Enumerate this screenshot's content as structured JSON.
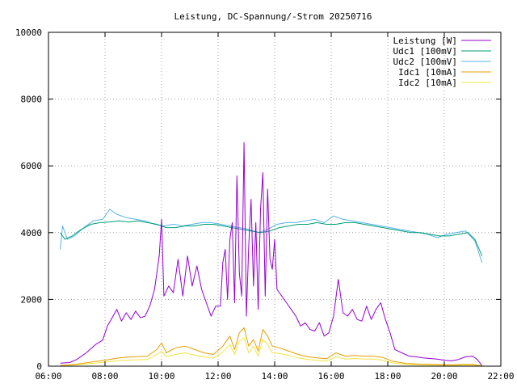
{
  "chart_data": {
    "type": "line",
    "title": "Leistung, DC-Spannung/-Strom 20250716",
    "xlabel": "",
    "ylabel": "",
    "xlim": [
      "06:00",
      "22:00"
    ],
    "ylim": [
      0,
      10000
    ],
    "x_ticks": [
      "06:00",
      "08:00",
      "10:00",
      "12:00",
      "14:00",
      "16:00",
      "18:00",
      "20:00",
      "22:00"
    ],
    "y_ticks": [
      "0",
      "2000",
      "4000",
      "6000",
      "8000",
      "10000"
    ],
    "grid": true,
    "legend_position": "top-right",
    "series": [
      {
        "name": "Leistung [W]",
        "color": "#9400d3",
        "points": [
          [
            "06:25",
            90
          ],
          [
            "06:45",
            110
          ],
          [
            "07:00",
            200
          ],
          [
            "07:20",
            400
          ],
          [
            "07:40",
            650
          ],
          [
            "07:55",
            780
          ],
          [
            "08:05",
            1200
          ],
          [
            "08:15",
            1450
          ],
          [
            "08:25",
            1700
          ],
          [
            "08:35",
            1350
          ],
          [
            "08:45",
            1600
          ],
          [
            "08:55",
            1400
          ],
          [
            "09:05",
            1650
          ],
          [
            "09:15",
            1450
          ],
          [
            "09:25",
            1500
          ],
          [
            "09:35",
            1800
          ],
          [
            "09:45",
            2300
          ],
          [
            "09:50",
            2800
          ],
          [
            "09:55",
            3300
          ],
          [
            "10:00",
            4400
          ],
          [
            "10:05",
            2100
          ],
          [
            "10:15",
            2400
          ],
          [
            "10:25",
            2200
          ],
          [
            "10:35",
            3200
          ],
          [
            "10:45",
            2100
          ],
          [
            "10:55",
            3300
          ],
          [
            "11:05",
            2400
          ],
          [
            "11:15",
            3000
          ],
          [
            "11:25",
            2300
          ],
          [
            "11:35",
            1900
          ],
          [
            "11:45",
            1500
          ],
          [
            "11:55",
            1800
          ],
          [
            "12:05",
            1800
          ],
          [
            "12:10",
            3100
          ],
          [
            "12:15",
            3500
          ],
          [
            "12:20",
            2000
          ],
          [
            "12:25",
            3800
          ],
          [
            "12:30",
            4300
          ],
          [
            "12:35",
            1900
          ],
          [
            "12:40",
            5700
          ],
          [
            "12:45",
            2800
          ],
          [
            "12:50",
            2100
          ],
          [
            "12:55",
            6700
          ],
          [
            "13:00",
            1500
          ],
          [
            "13:05",
            3600
          ],
          [
            "13:10",
            5000
          ],
          [
            "13:15",
            2400
          ],
          [
            "13:20",
            4300
          ],
          [
            "13:25",
            1700
          ],
          [
            "13:30",
            4700
          ],
          [
            "13:35",
            5800
          ],
          [
            "13:40",
            2100
          ],
          [
            "13:45",
            5300
          ],
          [
            "13:50",
            3200
          ],
          [
            "13:55",
            2900
          ],
          [
            "14:00",
            3800
          ],
          [
            "14:05",
            2300
          ],
          [
            "14:15",
            2100
          ],
          [
            "14:25",
            1900
          ],
          [
            "14:35",
            1700
          ],
          [
            "14:45",
            1500
          ],
          [
            "14:55",
            1200
          ],
          [
            "15:05",
            1300
          ],
          [
            "15:15",
            1100
          ],
          [
            "15:25",
            1050
          ],
          [
            "15:35",
            1300
          ],
          [
            "15:45",
            900
          ],
          [
            "15:55",
            1000
          ],
          [
            "16:05",
            1500
          ],
          [
            "16:15",
            2600
          ],
          [
            "16:25",
            1600
          ],
          [
            "16:35",
            1500
          ],
          [
            "16:45",
            1700
          ],
          [
            "16:55",
            1400
          ],
          [
            "17:05",
            1350
          ],
          [
            "17:15",
            1800
          ],
          [
            "17:25",
            1400
          ],
          [
            "17:35",
            1700
          ],
          [
            "17:45",
            1900
          ],
          [
            "17:55",
            1400
          ],
          [
            "18:05",
            1000
          ],
          [
            "18:15",
            500
          ],
          [
            "18:30",
            400
          ],
          [
            "18:45",
            300
          ],
          [
            "19:00",
            280
          ],
          [
            "19:15",
            250
          ],
          [
            "19:30",
            230
          ],
          [
            "19:45",
            210
          ],
          [
            "20:00",
            180
          ],
          [
            "20:15",
            160
          ],
          [
            "20:30",
            200
          ],
          [
            "20:45",
            280
          ],
          [
            "21:00",
            300
          ],
          [
            "21:10",
            200
          ],
          [
            "21:20",
            20
          ]
        ]
      },
      {
        "name": "Udc1 [100mV]",
        "color": "#009e73",
        "points": [
          [
            "06:25",
            4000
          ],
          [
            "06:35",
            3800
          ],
          [
            "06:50",
            3900
          ],
          [
            "07:10",
            4100
          ],
          [
            "07:30",
            4250
          ],
          [
            "07:50",
            4300
          ],
          [
            "08:10",
            4320
          ],
          [
            "08:30",
            4350
          ],
          [
            "08:50",
            4320
          ],
          [
            "09:10",
            4350
          ],
          [
            "09:30",
            4300
          ],
          [
            "09:50",
            4250
          ],
          [
            "10:10",
            4150
          ],
          [
            "10:30",
            4150
          ],
          [
            "10:50",
            4200
          ],
          [
            "11:10",
            4200
          ],
          [
            "11:30",
            4250
          ],
          [
            "11:50",
            4250
          ],
          [
            "12:10",
            4200
          ],
          [
            "12:30",
            4150
          ],
          [
            "12:50",
            4100
          ],
          [
            "13:10",
            4050
          ],
          [
            "13:30",
            4000
          ],
          [
            "13:50",
            4050
          ],
          [
            "14:10",
            4150
          ],
          [
            "14:30",
            4200
          ],
          [
            "14:50",
            4250
          ],
          [
            "15:10",
            4250
          ],
          [
            "15:30",
            4300
          ],
          [
            "15:50",
            4250
          ],
          [
            "16:10",
            4250
          ],
          [
            "16:30",
            4300
          ],
          [
            "16:50",
            4300
          ],
          [
            "17:10",
            4250
          ],
          [
            "17:30",
            4200
          ],
          [
            "17:50",
            4150
          ],
          [
            "18:10",
            4100
          ],
          [
            "18:30",
            4050
          ],
          [
            "18:50",
            4000
          ],
          [
            "19:10",
            4000
          ],
          [
            "19:30",
            3950
          ],
          [
            "19:50",
            3900
          ],
          [
            "20:10",
            3900
          ],
          [
            "20:30",
            3950
          ],
          [
            "20:50",
            4000
          ],
          [
            "21:05",
            3800
          ],
          [
            "21:20",
            3300
          ]
        ]
      },
      {
        "name": "Udc2 [100mV]",
        "color": "#56b4e9",
        "points": [
          [
            "06:25",
            3500
          ],
          [
            "06:30",
            4200
          ],
          [
            "06:40",
            3800
          ],
          [
            "06:55",
            3900
          ],
          [
            "07:15",
            4150
          ],
          [
            "07:35",
            4350
          ],
          [
            "07:55",
            4400
          ],
          [
            "08:10",
            4700
          ],
          [
            "08:25",
            4550
          ],
          [
            "08:45",
            4450
          ],
          [
            "09:05",
            4400
          ],
          [
            "09:25",
            4350
          ],
          [
            "09:45",
            4250
          ],
          [
            "10:05",
            4200
          ],
          [
            "10:25",
            4250
          ],
          [
            "10:45",
            4200
          ],
          [
            "11:05",
            4250
          ],
          [
            "11:25",
            4300
          ],
          [
            "11:45",
            4300
          ],
          [
            "12:05",
            4250
          ],
          [
            "12:25",
            4200
          ],
          [
            "12:45",
            4150
          ],
          [
            "13:05",
            4100
          ],
          [
            "13:25",
            4000
          ],
          [
            "13:45",
            4100
          ],
          [
            "14:05",
            4250
          ],
          [
            "14:25",
            4300
          ],
          [
            "14:45",
            4300
          ],
          [
            "15:05",
            4350
          ],
          [
            "15:25",
            4400
          ],
          [
            "15:45",
            4300
          ],
          [
            "16:05",
            4500
          ],
          [
            "16:25",
            4400
          ],
          [
            "16:45",
            4350
          ],
          [
            "17:05",
            4300
          ],
          [
            "17:25",
            4250
          ],
          [
            "17:45",
            4200
          ],
          [
            "18:05",
            4150
          ],
          [
            "18:25",
            4100
          ],
          [
            "18:45",
            4050
          ],
          [
            "19:05",
            4000
          ],
          [
            "19:25",
            3950
          ],
          [
            "19:45",
            3850
          ],
          [
            "20:05",
            3950
          ],
          [
            "20:25",
            4000
          ],
          [
            "20:45",
            4050
          ],
          [
            "21:05",
            3750
          ],
          [
            "21:20",
            3100
          ]
        ]
      },
      {
        "name": "Idc1 [10mA]",
        "color": "#e69f00",
        "points": [
          [
            "06:25",
            20
          ],
          [
            "07:00",
            60
          ],
          [
            "07:30",
            120
          ],
          [
            "08:00",
            180
          ],
          [
            "08:30",
            250
          ],
          [
            "09:00",
            280
          ],
          [
            "09:30",
            300
          ],
          [
            "09:50",
            500
          ],
          [
            "10:00",
            700
          ],
          [
            "10:10",
            400
          ],
          [
            "10:30",
            550
          ],
          [
            "10:50",
            600
          ],
          [
            "11:10",
            500
          ],
          [
            "11:30",
            400
          ],
          [
            "11:50",
            350
          ],
          [
            "12:10",
            600
          ],
          [
            "12:25",
            900
          ],
          [
            "12:35",
            500
          ],
          [
            "12:45",
            1000
          ],
          [
            "12:55",
            1150
          ],
          [
            "13:05",
            600
          ],
          [
            "13:15",
            800
          ],
          [
            "13:25",
            450
          ],
          [
            "13:35",
            1100
          ],
          [
            "13:45",
            900
          ],
          [
            "13:55",
            600
          ],
          [
            "14:10",
            550
          ],
          [
            "14:30",
            450
          ],
          [
            "14:50",
            350
          ],
          [
            "15:10",
            280
          ],
          [
            "15:30",
            250
          ],
          [
            "15:50",
            220
          ],
          [
            "16:10",
            400
          ],
          [
            "16:30",
            300
          ],
          [
            "16:50",
            320
          ],
          [
            "17:10",
            300
          ],
          [
            "17:30",
            300
          ],
          [
            "17:50",
            260
          ],
          [
            "18:10",
            150
          ],
          [
            "18:40",
            80
          ],
          [
            "19:10",
            60
          ],
          [
            "19:40",
            50
          ],
          [
            "20:10",
            40
          ],
          [
            "20:40",
            50
          ],
          [
            "21:00",
            50
          ],
          [
            "21:20",
            10
          ]
        ]
      },
      {
        "name": "Idc2 [10mA]",
        "color": "#f0e442",
        "points": [
          [
            "06:25",
            10
          ],
          [
            "07:00",
            40
          ],
          [
            "07:30",
            80
          ],
          [
            "08:00",
            120
          ],
          [
            "08:30",
            170
          ],
          [
            "09:00",
            190
          ],
          [
            "09:30",
            200
          ],
          [
            "09:50",
            350
          ],
          [
            "10:00",
            450
          ],
          [
            "10:10",
            280
          ],
          [
            "10:30",
            350
          ],
          [
            "10:50",
            400
          ],
          [
            "11:10",
            330
          ],
          [
            "11:30",
            280
          ],
          [
            "11:50",
            240
          ],
          [
            "12:10",
            420
          ],
          [
            "12:25",
            650
          ],
          [
            "12:35",
            350
          ],
          [
            "12:45",
            750
          ],
          [
            "12:55",
            850
          ],
          [
            "13:05",
            400
          ],
          [
            "13:15",
            600
          ],
          [
            "13:25",
            300
          ],
          [
            "13:35",
            800
          ],
          [
            "13:45",
            650
          ],
          [
            "13:55",
            400
          ],
          [
            "14:10",
            380
          ],
          [
            "14:30",
            320
          ],
          [
            "14:50",
            250
          ],
          [
            "15:10",
            200
          ],
          [
            "15:30",
            180
          ],
          [
            "15:50",
            150
          ],
          [
            "16:10",
            280
          ],
          [
            "16:30",
            210
          ],
          [
            "16:50",
            230
          ],
          [
            "17:10",
            210
          ],
          [
            "17:30",
            210
          ],
          [
            "17:50",
            180
          ],
          [
            "18:10",
            100
          ],
          [
            "18:40",
            50
          ],
          [
            "19:10",
            40
          ],
          [
            "19:40",
            30
          ],
          [
            "20:10",
            25
          ],
          [
            "20:40",
            30
          ],
          [
            "21:00",
            30
          ],
          [
            "21:20",
            5
          ]
        ]
      }
    ]
  }
}
